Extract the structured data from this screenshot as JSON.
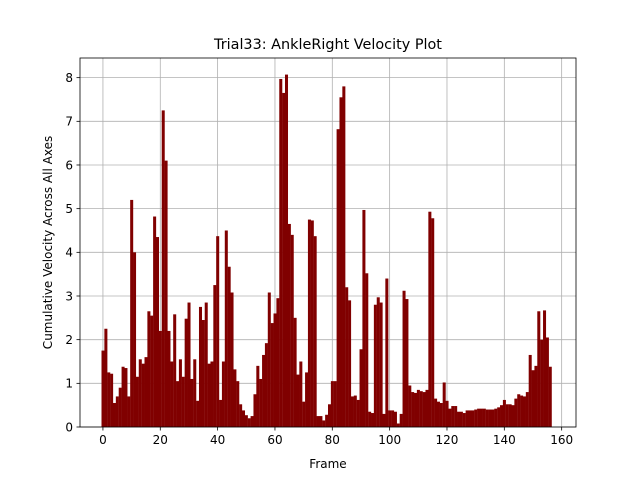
{
  "chart_data": {
    "type": "bar",
    "title": "Trial33: AnkleRight Velocity Plot",
    "xlabel": "Frame",
    "ylabel": "Cumulative Velocity Across All Axes",
    "xlim": [
      -8,
      165
    ],
    "ylim": [
      0,
      8.45
    ],
    "xticks": [
      0,
      20,
      40,
      60,
      80,
      100,
      120,
      140,
      160
    ],
    "yticks": [
      0,
      1,
      2,
      3,
      4,
      5,
      6,
      7,
      8
    ],
    "grid": true,
    "bar_color": "#800000",
    "bar_width": 1,
    "x_start": 0,
    "values": [
      1.75,
      2.25,
      1.25,
      1.22,
      0.55,
      0.7,
      0.9,
      1.38,
      1.35,
      0.7,
      5.2,
      4.0,
      1.15,
      1.55,
      1.45,
      1.6,
      2.65,
      2.55,
      4.82,
      4.35,
      2.2,
      7.25,
      6.1,
      2.2,
      1.5,
      2.58,
      1.05,
      1.55,
      1.15,
      2.48,
      2.85,
      1.1,
      1.55,
      0.6,
      2.75,
      2.45,
      2.85,
      1.45,
      1.5,
      3.25,
      4.37,
      0.62,
      1.5,
      4.5,
      3.67,
      3.08,
      1.32,
      1.05,
      0.52,
      0.38,
      0.27,
      0.2,
      0.25,
      0.75,
      1.4,
      1.1,
      1.65,
      1.92,
      3.08,
      2.38,
      2.6,
      2.95,
      7.97,
      7.65,
      8.07,
      4.65,
      4.4,
      2.5,
      1.2,
      1.5,
      0.58,
      1.25,
      4.75,
      4.73,
      4.37,
      0.25,
      0.25,
      0.15,
      0.28,
      0.52,
      1.05,
      1.05,
      6.82,
      7.55,
      7.8,
      3.2,
      2.9,
      0.7,
      0.72,
      0.62,
      1.78,
      4.97,
      3.52,
      0.35,
      0.32,
      2.8,
      2.97,
      2.85,
      0.3,
      3.4,
      0.38,
      0.38,
      0.35,
      0.08,
      0.3,
      3.12,
      2.93,
      0.95,
      0.8,
      0.78,
      0.85,
      0.82,
      0.8,
      0.85,
      4.93,
      4.78,
      0.65,
      0.58,
      0.55,
      1.02,
      0.6,
      0.42,
      0.48,
      0.48,
      0.35,
      0.35,
      0.32,
      0.38,
      0.38,
      0.38,
      0.4,
      0.42,
      0.42,
      0.42,
      0.4,
      0.4,
      0.4,
      0.42,
      0.45,
      0.5,
      0.62,
      0.52,
      0.52,
      0.5,
      0.65,
      0.75,
      0.72,
      0.7,
      0.8,
      1.65,
      1.3,
      1.4,
      2.65,
      2.0,
      2.67,
      2.05,
      1.38
    ]
  }
}
